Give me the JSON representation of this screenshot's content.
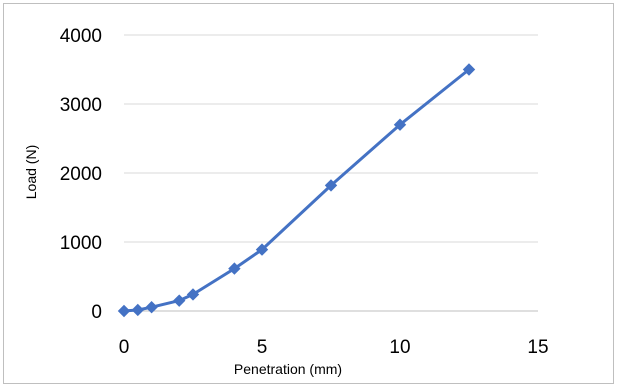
{
  "chart_data": {
    "type": "line",
    "title": "",
    "xlabel": "Penetration (mm)",
    "ylabel": "Load (N)",
    "xlim": [
      0,
      15
    ],
    "ylim": [
      0,
      4000
    ],
    "x_ticks": [
      0,
      5,
      10,
      15
    ],
    "y_ticks": [
      0,
      1000,
      2000,
      3000,
      4000
    ],
    "grid": "horizontal",
    "legend": "none",
    "series": [
      {
        "marker": "diamond",
        "color": "#4472C4",
        "points": [
          {
            "x": 0,
            "y": 0
          },
          {
            "x": 0.5,
            "y": 15
          },
          {
            "x": 1,
            "y": 55
          },
          {
            "x": 2,
            "y": 150
          },
          {
            "x": 2.5,
            "y": 240
          },
          {
            "x": 4,
            "y": 615
          },
          {
            "x": 5,
            "y": 890
          },
          {
            "x": 7.5,
            "y": 1820
          },
          {
            "x": 10,
            "y": 2700
          },
          {
            "x": 12.5,
            "y": 3500
          }
        ]
      }
    ]
  }
}
